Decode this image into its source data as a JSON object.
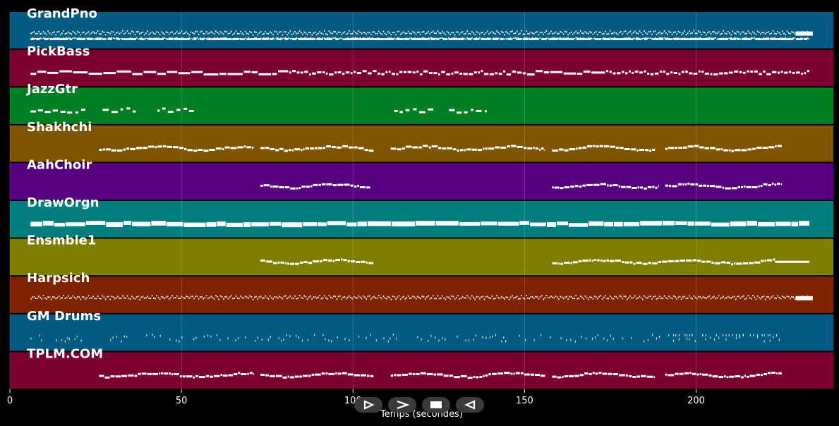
{
  "chart_data": {
    "type": "piano-roll",
    "xlabel": "Temps (secondes)",
    "xlim": [
      0,
      240
    ],
    "xticks": [
      0,
      50,
      100,
      150,
      200
    ],
    "tracks": [
      {
        "name": "GrandPno",
        "color": "#005a82",
        "style": "dense2",
        "segments": [
          [
            6,
            233
          ]
        ],
        "tail": [
          229,
          234
        ]
      },
      {
        "name": "PickBass",
        "color": "#7a002e",
        "style": "bass",
        "segments": [
          [
            6,
            233
          ]
        ]
      },
      {
        "name": "JazzGtr",
        "color": "#007e22",
        "style": "sparse",
        "segments": [
          [
            6,
            22
          ],
          [
            27,
            37
          ],
          [
            43,
            54
          ],
          [
            112,
            124
          ],
          [
            128,
            139
          ]
        ]
      },
      {
        "name": "Shakhchi",
        "color": "#7e5400",
        "style": "melody",
        "segments": [
          [
            26,
            71
          ],
          [
            73,
            106
          ],
          [
            111,
            156
          ],
          [
            158,
            188
          ],
          [
            191,
            225
          ]
        ]
      },
      {
        "name": "AahChoir",
        "color": "#560080",
        "style": "melody",
        "segments": [
          [
            73,
            105
          ],
          [
            158,
            189
          ],
          [
            191,
            225
          ]
        ]
      },
      {
        "name": "DrawOrgn",
        "color": "#007e7e",
        "style": "thick",
        "segments": [
          [
            6,
            233
          ]
        ]
      },
      {
        "name": "Ensmble1",
        "color": "#7e7e00",
        "style": "melody",
        "segments": [
          [
            73,
            106
          ],
          [
            158,
            223
          ]
        ],
        "tail": [
          223,
          233
        ]
      },
      {
        "name": "Harpsich",
        "color": "#7e2200",
        "style": "dense1",
        "segments": [
          [
            6,
            233
          ]
        ],
        "tail": [
          229,
          234
        ]
      },
      {
        "name": "GM Drums",
        "color": "#005a82",
        "style": "drums",
        "segments": [
          [
            6,
            225
          ]
        ]
      },
      {
        "name": "TPLM.COM",
        "color": "#7a002e",
        "style": "melody",
        "segments": [
          [
            26,
            71
          ],
          [
            73,
            106
          ],
          [
            111,
            156
          ],
          [
            158,
            188
          ],
          [
            191,
            225
          ]
        ]
      }
    ]
  },
  "controls": {
    "play": "play-icon",
    "fast_forward": "fast-forward-icon",
    "stop": "stop-icon",
    "rewind": "rewind-icon"
  }
}
